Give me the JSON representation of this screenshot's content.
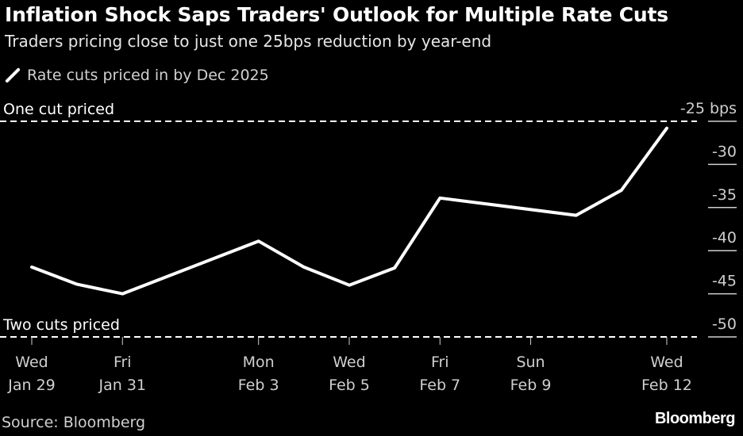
{
  "chart_data": {
    "type": "line",
    "title": "Inflation Shock Saps Traders' Outlook for Multiple Rate Cuts",
    "subtitle": "Traders pricing close to just one 25bps reduction by year-end",
    "legend": [
      {
        "name": "Rate cuts priced in by Dec 2025",
        "color": "#ffffff",
        "placement": "top-left"
      }
    ],
    "ylabel_unit": "bps",
    "ylim": [
      -50,
      -25
    ],
    "y_ticks": [
      -25,
      -30,
      -35,
      -40,
      -45,
      -50
    ],
    "y_tick_labels": [
      "-25 bps",
      "-30",
      "-35",
      "-40",
      "-45",
      "-50"
    ],
    "x_day_range": [
      0,
      14
    ],
    "x_ticks": [
      {
        "day": 0,
        "weekday": "Wed",
        "date": "Jan 29"
      },
      {
        "day": 2,
        "weekday": "Fri",
        "date": "Jan 31"
      },
      {
        "day": 5,
        "weekday": "Mon",
        "date": "Feb 3"
      },
      {
        "day": 7,
        "weekday": "Wed",
        "date": "Feb 5"
      },
      {
        "day": 9,
        "weekday": "Fri",
        "date": "Feb 7"
      },
      {
        "day": 11,
        "weekday": "Sun",
        "date": "Feb 9"
      },
      {
        "day": 14,
        "weekday": "Wed",
        "date": "Feb 12"
      }
    ],
    "series": [
      {
        "name": "Rate cuts priced in by Dec 2025",
        "x": [
          "Jan 29",
          "Jan 30",
          "Jan 31",
          "Feb 3",
          "Feb 4",
          "Feb 5",
          "Feb 6",
          "Feb 7",
          "Feb 10",
          "Feb 11",
          "Feb 12"
        ],
        "days": [
          0,
          1,
          2,
          5,
          6,
          7,
          8,
          9,
          12,
          13,
          14
        ],
        "values": [
          -41.9,
          -43.9,
          -45.0,
          -38.9,
          -41.9,
          -44.0,
          -42.0,
          -33.9,
          -35.9,
          -33.0,
          -25.8
        ]
      }
    ],
    "annotations": [
      {
        "text": "One cut priced",
        "value": -25
      },
      {
        "text": "Two cuts priced",
        "value": -50
      }
    ],
    "grid": false,
    "source": "Source: Bloomberg",
    "brand": "Bloomberg"
  }
}
